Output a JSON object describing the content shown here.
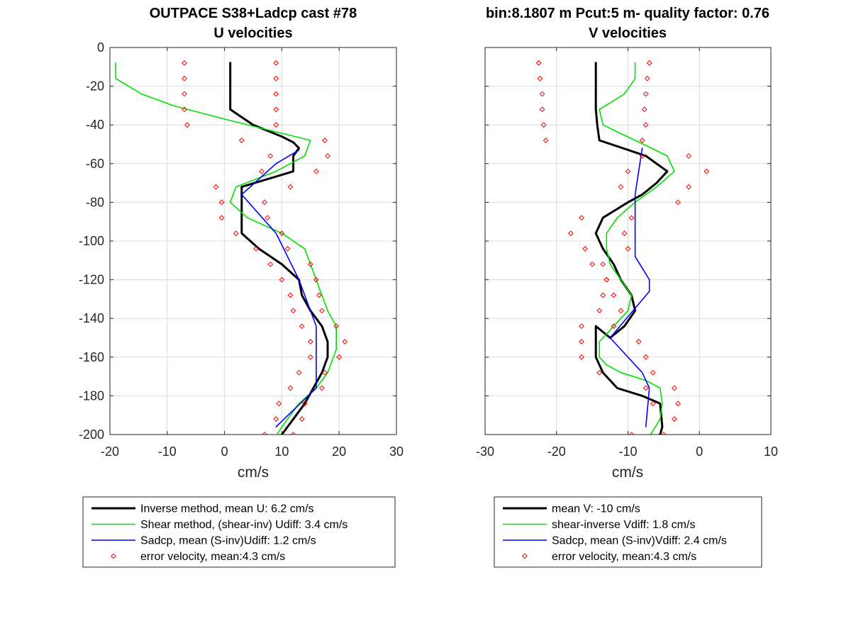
{
  "chart_data": [
    {
      "type": "line",
      "title": [
        "OUTPACE S38+Ladcp cast #78",
        "U velocities"
      ],
      "xlabel": "cm/s",
      "ylabel": "",
      "xlim": [
        -20,
        30
      ],
      "ylim": [
        -200,
        0
      ],
      "xticks": [
        -20,
        -10,
        0,
        10,
        20,
        30
      ],
      "yticks": [
        0,
        -20,
        -40,
        -60,
        -80,
        -100,
        -120,
        -140,
        -160,
        -180,
        -200
      ],
      "xtick_labels": [
        "-20",
        "-10",
        "0",
        "10",
        "20",
        "30"
      ],
      "ytick_labels": [
        "0",
        "-20",
        "-40",
        "-60",
        "-80",
        "-100",
        "-120",
        "-140",
        "-160",
        "-180",
        "-200"
      ],
      "grid": true,
      "legend_position": "below",
      "series": [
        {
          "name": "Inverse method, mean U:  6.2 cm/s",
          "color": "#000000",
          "style": "line-thick",
          "x": [
            1,
            1,
            1,
            1,
            5,
            10,
            12,
            13,
            12,
            12,
            3,
            3,
            3,
            3,
            6,
            10,
            13,
            13.5,
            15,
            17,
            18,
            18,
            17,
            15.5,
            14,
            12,
            11,
            10,
            9
          ],
          "y": [
            -8,
            -16,
            -24,
            -32,
            -40,
            -46,
            -49,
            -52,
            -56,
            -64,
            -72,
            -80,
            -88,
            -96,
            -104,
            -112,
            -120,
            -128,
            -136,
            -144,
            -152,
            -160,
            -168,
            -176,
            -184,
            -192,
            -196,
            -200,
            -202
          ]
        },
        {
          "name": "Shear method, (shear-inv)  Udiff:  3.4 cm/s",
          "color": "#00e000",
          "style": "line",
          "x": [
            -19,
            -19,
            -14.5,
            -9,
            0,
            15,
            14,
            9,
            2,
            1,
            4,
            10,
            14,
            15,
            16,
            18,
            19.5,
            19.5,
            18,
            16,
            13,
            11,
            10,
            9
          ],
          "y": [
            -8,
            -16,
            -24,
            -30,
            -37,
            -48,
            -56,
            -64,
            -72,
            -80,
            -88,
            -96,
            -104,
            -112,
            -120,
            -136,
            -144,
            -156,
            -168,
            -176,
            -184,
            -192,
            -196,
            -201
          ]
        },
        {
          "name": "Sadcp, mean (S-inv)Udiff: 1.2 cm/s",
          "color": "#0000ff",
          "style": "line",
          "x": [
            13,
            9,
            6,
            3,
            9,
            13,
            16,
            16,
            16,
            9
          ],
          "y": [
            -53,
            -60,
            -68,
            -76,
            -96,
            -120,
            -144,
            -160,
            -176,
            -196
          ]
        },
        {
          "name": "error velocity, mean:4.3 cm/s",
          "color": "#ff0000",
          "style": "markers",
          "x": [
            -7,
            -7,
            -7,
            -7,
            -6.5,
            9,
            9,
            9,
            9,
            9,
            3,
            17.5,
            8,
            18,
            6.5,
            16,
            -1.5,
            11.5,
            -0.5,
            7,
            -0.5,
            7.5,
            2,
            10,
            5.5,
            11,
            8,
            15,
            10,
            16,
            11.5,
            16.5,
            12,
            17,
            13.5,
            19.5,
            15,
            21,
            15,
            20,
            13,
            17.5,
            11.5,
            17,
            9.5,
            14,
            9,
            13.5,
            7,
            12
          ],
          "y": [
            -8,
            -16,
            -24,
            -32,
            -40,
            -8,
            -16,
            -24,
            -32,
            -40,
            -48,
            -48,
            -56,
            -56,
            -64,
            -64,
            -72,
            -72,
            -80,
            -80,
            -88,
            -88,
            -96,
            -96,
            -104,
            -104,
            -112,
            -112,
            -120,
            -120,
            -128,
            -128,
            -136,
            -136,
            -144,
            -144,
            -152,
            -152,
            -160,
            -160,
            -168,
            -168,
            -176,
            -176,
            -184,
            -184,
            -192,
            -192,
            -200,
            -200
          ]
        }
      ],
      "legend": [
        "Inverse method, mean U:  6.2 cm/s",
        "Shear method, (shear-inv)  Udiff:  3.4 cm/s",
        "Sadcp, mean (S-inv)Udiff: 1.2 cm/s",
        "error velocity, mean:4.3 cm/s"
      ]
    },
    {
      "type": "line",
      "title": [
        "bin:8.1807 m  Pcut:5 m- quality factor:  0.76",
        "V velocities"
      ],
      "xlabel": "cm/s",
      "ylabel": "",
      "xlim": [
        -30,
        10
      ],
      "ylim": [
        -200,
        0
      ],
      "xticks": [
        -30,
        -20,
        -10,
        0,
        10
      ],
      "yticks": [
        0,
        -20,
        -40,
        -60,
        -80,
        -100,
        -120,
        -140,
        -160,
        -180,
        -200
      ],
      "xtick_labels": [
        "-30",
        "-20",
        "-10",
        "0",
        "10"
      ],
      "ytick_labels": [],
      "grid": true,
      "legend_position": "below",
      "series": [
        {
          "name": "mean V:  -10 cm/s",
          "color": "#000000",
          "style": "line-thick",
          "x": [
            -14.5,
            -14.5,
            -14.5,
            -14.5,
            -14.3,
            -14,
            -7.5,
            -4.5,
            -6,
            -8,
            -10,
            -13.5,
            -14.5,
            -13.5,
            -12,
            -11,
            -9.5,
            -9,
            -10.5,
            -12.5,
            -14.5,
            -14.5,
            -14.5,
            -13.5,
            -11.5,
            -8,
            -5.5,
            -5.3,
            -5.2,
            -5.5,
            -7
          ],
          "y": [
            -8,
            -16,
            -24,
            -32,
            -40,
            -48,
            -56,
            -64,
            -70,
            -76,
            -80,
            -88,
            -96,
            -104,
            -112,
            -120,
            -128,
            -136,
            -144,
            -150,
            -144,
            -152,
            -160,
            -168,
            -176,
            -180,
            -184,
            -192,
            -196,
            -200,
            -202
          ]
        },
        {
          "name": "shear-inverse Vdiff:  1.8 cm/s",
          "color": "#00e000",
          "style": "line",
          "x": [
            -9,
            -9,
            -10.5,
            -14,
            -13.5,
            -9,
            -4.5,
            -3.5,
            -6,
            -9,
            -11.5,
            -13,
            -13,
            -12.5,
            -11,
            -9.5,
            -10,
            -12,
            -14,
            -14,
            -13,
            -11,
            -7.5,
            -5.5,
            -5.2,
            -5.5,
            -7
          ],
          "y": [
            -8,
            -16,
            -24,
            -32,
            -40,
            -48,
            -56,
            -64,
            -72,
            -80,
            -88,
            -96,
            -104,
            -112,
            -120,
            -128,
            -136,
            -144,
            -152,
            -160,
            -164,
            -168,
            -172,
            -176,
            -184,
            -192,
            -201
          ]
        },
        {
          "name": "Sadcp, mean (S-inv)Vdiff: 2.4 cm/s",
          "color": "#0000ff",
          "style": "line",
          "x": [
            -8,
            -8.5,
            -9,
            -9,
            -9,
            -9,
            -7,
            -7,
            -12.5,
            -8,
            -7,
            -7.5
          ],
          "y": [
            -52,
            -64,
            -76,
            -88,
            -100,
            -108,
            -120,
            -126,
            -150,
            -168,
            -176,
            -196
          ]
        },
        {
          "name": "error velocity, mean:4.3 cm/s",
          "color": "#ff0000",
          "style": "markers",
          "x": [
            -22.5,
            -22.3,
            -22,
            -22,
            -21.8,
            -21.5,
            -7,
            -7.3,
            -7.5,
            -7.7,
            -7.5,
            -8,
            -1.5,
            -8,
            1,
            -10,
            -1.5,
            -11,
            -3,
            -16.5,
            -9.5,
            -18,
            -10.5,
            -16,
            -10,
            -15,
            -13.5,
            -13,
            -13,
            -13.5,
            -12,
            -14,
            -11,
            -16.5,
            -12,
            -16.5,
            -8.5,
            -16.5,
            -7.5,
            -14,
            -6.5,
            -3.5,
            -7.5,
            -3,
            -6.5,
            -3.5,
            -9.5,
            -5
          ],
          "y": [
            -8,
            -16,
            -24,
            -32,
            -40,
            -48,
            -8,
            -16,
            -24,
            -32,
            -40,
            -48,
            -56,
            -56,
            -64,
            -64,
            -72,
            -72,
            -80,
            -88,
            -88,
            -96,
            -96,
            -104,
            -104,
            -112,
            -112,
            -120,
            -120,
            -128,
            -128,
            -136,
            -136,
            -144,
            -144,
            -152,
            -152,
            -160,
            -160,
            -168,
            -168,
            -176,
            -176,
            -184,
            -184,
            -192,
            -200,
            -200
          ]
        }
      ],
      "legend": [
        "mean V:  -10 cm/s",
        "shear-inverse Vdiff:  1.8 cm/s",
        "Sadcp, mean (S-inv)Vdiff: 2.4 cm/s",
        "error velocity, mean:4.3 cm/s"
      ]
    }
  ]
}
